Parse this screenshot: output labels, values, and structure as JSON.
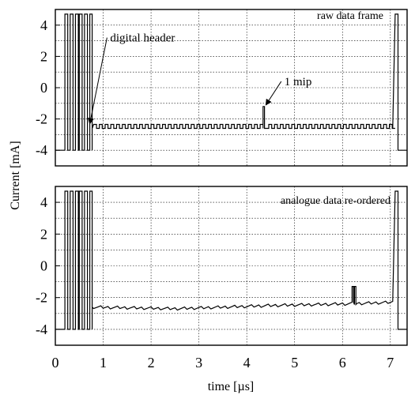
{
  "chart_data": [
    {
      "type": "line",
      "panel": "top",
      "annotation_label": "raw data frame",
      "xlim": [
        0,
        7.35
      ],
      "ylim": [
        -5,
        5
      ],
      "xticks": [
        0,
        1,
        2,
        3,
        4,
        5,
        6,
        7
      ],
      "yticks": [
        4,
        2,
        0,
        -2,
        -4
      ],
      "ytick_labels": [
        "4",
        "2",
        "0",
        "-2",
        "-4"
      ],
      "grid": true,
      "annotations": [
        {
          "text": "digital header",
          "point": [
            0.72,
            -2.3
          ],
          "text_at": [
            1.08,
            3.2
          ]
        },
        {
          "text": "1 mip",
          "point": [
            4.4,
            -1.1
          ],
          "text_at": [
            4.72,
            0.4
          ]
        }
      ],
      "series": [
        {
          "digital_header": {
            "start": 0.15,
            "pulses": [
              [
                0.2,
                0.26
              ],
              [
                0.31,
                0.37
              ],
              [
                0.42,
                0.48
              ],
              [
                0.5,
                0.56
              ],
              [
                0.61,
                0.67
              ],
              [
                0.72,
                0.77
              ]
            ],
            "high": 4.7,
            "low": -4.0
          },
          "analogue_pedestal": -2.6,
          "analogue_pattern": "alternating channels ~ -2.4 / -2.6 (raw order)",
          "mip": {
            "x": 4.32,
            "y": -1.2
          },
          "trailer": {
            "x": 7.1,
            "high": 4.7,
            "low": -4.0
          }
        }
      ]
    },
    {
      "type": "line",
      "panel": "bottom",
      "annotation_label": "analogue data re-ordered",
      "xlim": [
        0,
        7.35
      ],
      "ylim": [
        -5,
        5
      ],
      "xticks": [
        0,
        1,
        2,
        3,
        4,
        5,
        6,
        7
      ],
      "xtick_labels": [
        "0",
        "1",
        "2",
        "3",
        "4",
        "5",
        "6",
        "7"
      ],
      "yticks": [
        4,
        2,
        0,
        -2,
        -4
      ],
      "ytick_labels": [
        "4",
        "2",
        "0",
        "-2",
        "-4"
      ],
      "grid": true,
      "series": [
        {
          "digital_header": {
            "start": 0.15,
            "pulses": [
              [
                0.2,
                0.26
              ],
              [
                0.31,
                0.37
              ],
              [
                0.42,
                0.48
              ],
              [
                0.5,
                0.56
              ],
              [
                0.61,
                0.67
              ],
              [
                0.72,
                0.77
              ]
            ],
            "high": 4.7,
            "low": -4.0
          },
          "analogue_baseline": [
            [
              0.8,
              -2.6
            ],
            [
              2.5,
              -2.7
            ],
            [
              4.5,
              -2.5
            ],
            [
              6.0,
              -2.4
            ],
            [
              7.05,
              -2.3
            ]
          ],
          "mip": {
            "x": 6.22,
            "y": -1.3
          },
          "trailer": {
            "x": 7.1,
            "high": 4.7,
            "low": -4.0
          }
        }
      ]
    }
  ],
  "axes": {
    "ylabel": "Current [mA]",
    "xlabel": "time [µs]"
  }
}
